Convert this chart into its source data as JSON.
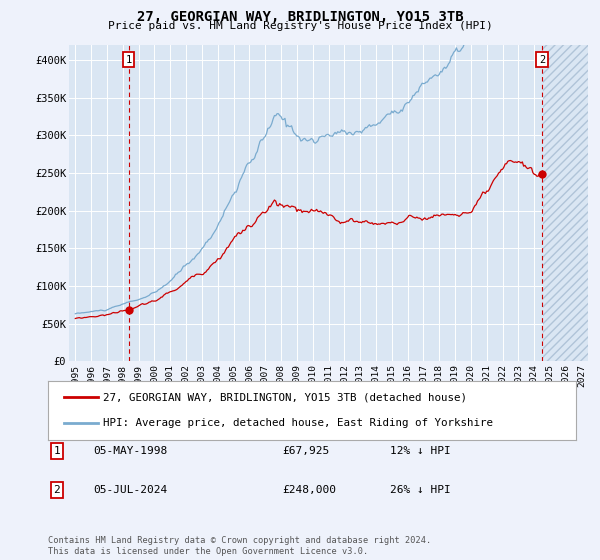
{
  "title": "27, GEORGIAN WAY, BRIDLINGTON, YO15 3TB",
  "subtitle": "Price paid vs. HM Land Registry's House Price Index (HPI)",
  "red_label": "27, GEORGIAN WAY, BRIDLINGTON, YO15 3TB (detached house)",
  "blue_label": "HPI: Average price, detached house, East Riding of Yorkshire",
  "footer": "Contains HM Land Registry data © Crown copyright and database right 2024.\nThis data is licensed under the Open Government Licence v3.0.",
  "ylim": [
    0,
    420000
  ],
  "yticks": [
    0,
    50000,
    100000,
    150000,
    200000,
    250000,
    300000,
    350000,
    400000
  ],
  "ytick_labels": [
    "£0",
    "£50K",
    "£100K",
    "£150K",
    "£200K",
    "£250K",
    "£300K",
    "£350K",
    "£400K"
  ],
  "background_color": "#eef2fb",
  "plot_bg_color": "#dae6f3",
  "grid_color": "#ffffff",
  "red_color": "#cc0000",
  "blue_color": "#7aabcf",
  "hatch_color": "#c8d8e8",
  "point1_x": 1998.37,
  "point1_y": 67925,
  "point2_x": 2024.5,
  "point2_y": 248000,
  "hatch_start": 2024.58,
  "xlim_left": 1994.6,
  "xlim_right": 2027.4,
  "xtick_start": 1995,
  "xtick_end": 2027,
  "annotation1": [
    "1",
    "05-MAY-1998",
    "£67,925",
    "12% ↓ HPI"
  ],
  "annotation2": [
    "2",
    "05-JUL-2024",
    "£248,000",
    "26% ↓ HPI"
  ]
}
